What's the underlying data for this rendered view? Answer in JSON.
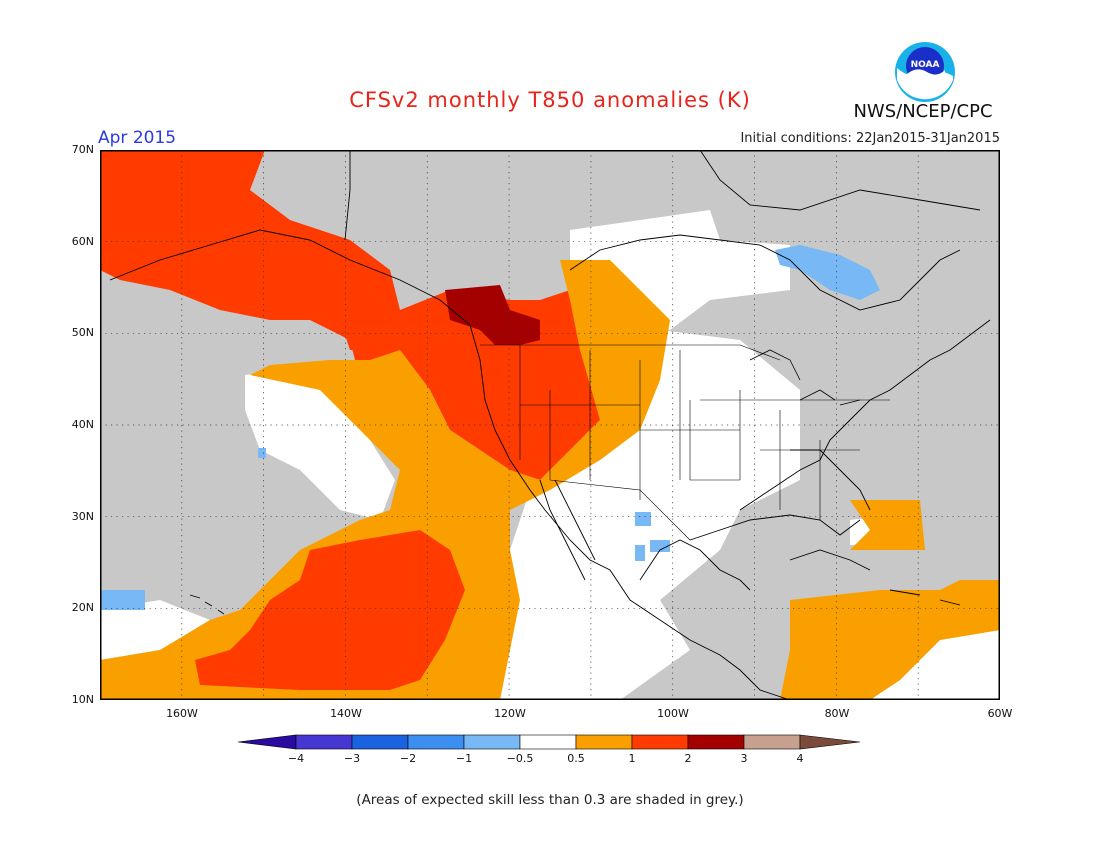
{
  "header": {
    "title": "CFSv2 monthly T850 anomalies (K)",
    "month": "Apr 2015",
    "initial_conditions": "Initial conditions: 22Jan2015-31Jan2015",
    "agency": "NWS/NCEP/CPC",
    "logo_text": "NOAA"
  },
  "axes": {
    "lat_labels": [
      "70N",
      "60N",
      "50N",
      "40N",
      "30N",
      "20N",
      "10N"
    ],
    "lon_labels": [
      "160W",
      "140W",
      "120W",
      "100W",
      "80W",
      "60W"
    ]
  },
  "colorbar": {
    "labels": [
      "−4",
      "−3",
      "−2",
      "−1",
      "−0.5",
      "0.5",
      "1",
      "2",
      "3",
      "4"
    ],
    "colors": [
      "#2a0aa0",
      "#4637d2",
      "#1b62e0",
      "#3a8ff0",
      "#78b8f5",
      "#ffffff",
      "#f9a000",
      "#ff3b00",
      "#a50000",
      "#c8a090",
      "#7a4a3a"
    ]
  },
  "map": {
    "colors": {
      "grey": "#c8c8c8",
      "white": "#ffffff",
      "orange": "#f9a000",
      "red": "#ff3b00",
      "darkred": "#a50000",
      "lightblue": "#78b8f5"
    }
  },
  "footnote": "(Areas of expected skill less than 0.3 are shaded in grey.)"
}
